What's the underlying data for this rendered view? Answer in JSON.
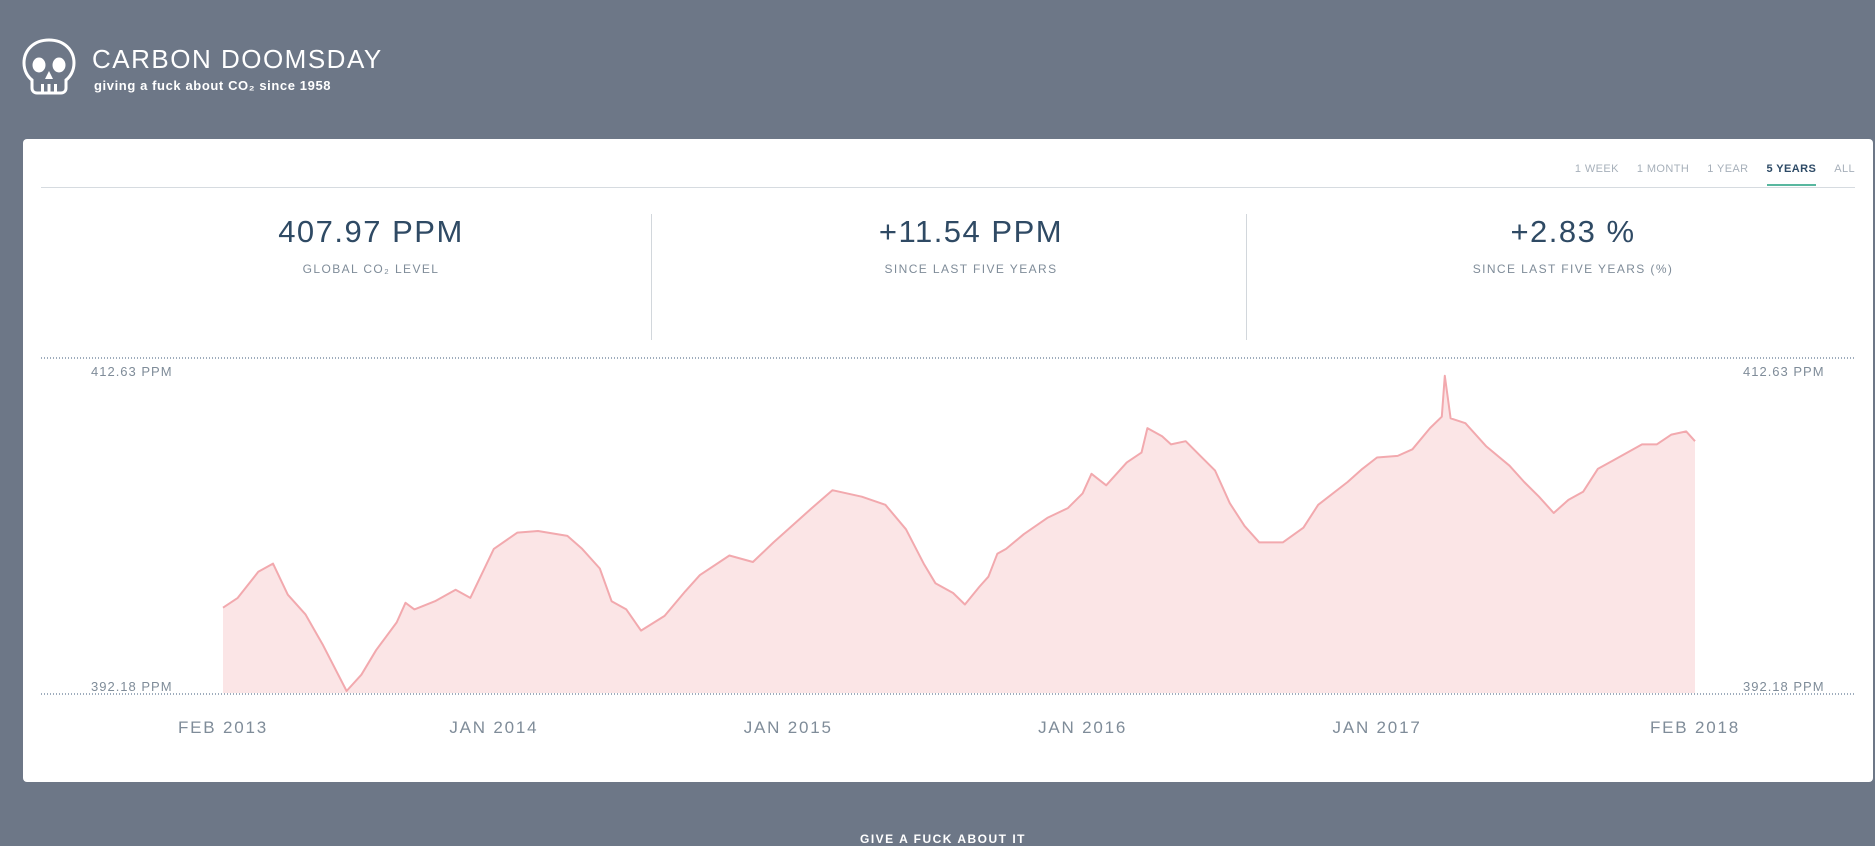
{
  "header": {
    "title": "CARBON DOOMSDAY",
    "tagline": "giving a fuck about CO₂ since 1958",
    "logo_icon": "skull-icon"
  },
  "tabs": [
    {
      "label": "1 WEEK",
      "active": false
    },
    {
      "label": "1 MONTH",
      "active": false
    },
    {
      "label": "1 YEAR",
      "active": false
    },
    {
      "label": "5 YEARS",
      "active": true
    },
    {
      "label": "ALL",
      "active": false
    }
  ],
  "stats": [
    {
      "value": "407.97 PPM",
      "label": "GLOBAL CO₂ LEVEL"
    },
    {
      "value": "+11.54 PPM",
      "label": "SINCE LAST FIVE YEARS"
    },
    {
      "value": "+2.83 %",
      "label": "SINCE LAST FIVE YEARS (%)"
    }
  ],
  "footer": {
    "cta": "GIVE A FUCK ABOUT IT"
  },
  "colors": {
    "page_bg": "#6d7787",
    "heading": "#2f4a64",
    "accent": "#58b79f",
    "line": "#f2a9ae",
    "fill": "#fbe5e6",
    "guide": "#3e5a78"
  },
  "chart_data": {
    "type": "area",
    "ylabel_max": "412.63 PPM",
    "ylabel_min": "392.18 PPM",
    "ylim": [
      392.18,
      412.63
    ],
    "xlim": [
      2013.08,
      2018.08
    ],
    "x_ticks": [
      {
        "label": "FEB 2013",
        "x": 2013.08
      },
      {
        "label": "JAN 2014",
        "x": 2014.0
      },
      {
        "label": "JAN 2015",
        "x": 2015.0
      },
      {
        "label": "JAN 2016",
        "x": 2016.0
      },
      {
        "label": "JAN 2017",
        "x": 2017.0
      },
      {
        "label": "FEB 2018",
        "x": 2018.08
      }
    ],
    "grid": false,
    "series": [
      {
        "x": [
          2013.08,
          2013.13,
          2013.2,
          2013.25,
          2013.3,
          2013.36,
          2013.42,
          2013.5,
          2013.55,
          2013.6,
          2013.67,
          2013.7,
          2013.73,
          2013.8,
          2013.87,
          2013.92,
          2014.0,
          2014.08,
          2014.15,
          2014.25,
          2014.3,
          2014.36,
          2014.4,
          2014.45,
          2014.5,
          2014.58,
          2014.65,
          2014.7,
          2014.8,
          2014.88,
          2014.95,
          2015.0,
          2015.08,
          2015.15,
          2015.25,
          2015.33,
          2015.4,
          2015.46,
          2015.5,
          2015.56,
          2015.6,
          2015.65,
          2015.68,
          2015.71,
          2015.74,
          2015.8,
          2015.88,
          2015.95,
          2016.0,
          2016.03,
          2016.08,
          2016.15,
          2016.2,
          2016.22,
          2016.27,
          2016.3,
          2016.35,
          2016.4,
          2016.45,
          2016.5,
          2016.55,
          2016.6,
          2016.68,
          2016.75,
          2016.8,
          2016.9,
          2016.95,
          2017.0,
          2017.07,
          2017.12,
          2017.18,
          2017.22,
          2017.23,
          2017.25,
          2017.3,
          2017.37,
          2017.45,
          2017.5,
          2017.55,
          2017.6,
          2017.65,
          2017.7,
          2017.75,
          2017.8,
          2017.9,
          2017.95,
          2018.0,
          2018.05,
          2018.08
        ],
        "values": [
          397.4,
          398.0,
          399.6,
          400.1,
          398.2,
          397.0,
          395.1,
          392.3,
          393.3,
          394.8,
          396.5,
          397.7,
          397.3,
          397.8,
          398.5,
          398.0,
          401.0,
          402.0,
          402.1,
          401.8,
          401.0,
          399.8,
          397.8,
          397.3,
          396.0,
          396.9,
          398.4,
          399.4,
          400.6,
          400.2,
          401.4,
          402.2,
          403.5,
          404.6,
          404.2,
          403.7,
          402.2,
          400.1,
          398.9,
          398.3,
          397.6,
          398.7,
          399.3,
          400.7,
          401.0,
          401.9,
          402.9,
          403.5,
          404.4,
          405.6,
          404.9,
          406.3,
          406.9,
          408.4,
          407.9,
          407.4,
          407.6,
          406.7,
          405.8,
          403.8,
          402.4,
          401.4,
          401.4,
          402.3,
          403.7,
          405.1,
          405.9,
          406.6,
          406.7,
          407.1,
          408.4,
          409.1,
          411.6,
          409.0,
          408.7,
          407.3,
          406.1,
          405.1,
          404.2,
          403.2,
          404.0,
          404.5,
          405.9,
          406.4,
          407.4,
          407.4,
          408.0,
          408.2,
          407.6
        ],
        "line_color": "#f2a9ae",
        "fill_color": "#fbe5e6"
      }
    ]
  }
}
